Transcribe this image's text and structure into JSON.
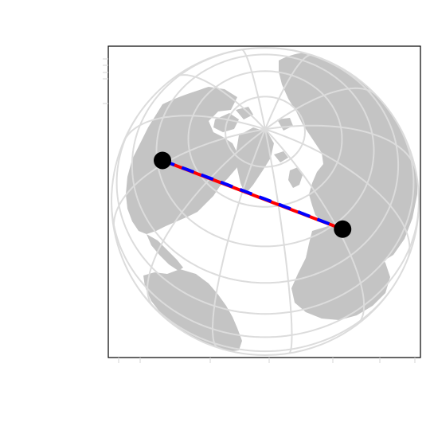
{
  "map": {
    "projection": "orthographic",
    "center_lat_deg": 62,
    "center_lon_deg": -40,
    "graticule_lat_step_deg": 15,
    "graticule_lon_step_deg": 30,
    "colors": {
      "background": "#ffffff",
      "globe": "#ffffff",
      "land": "#c4c4c4",
      "graticule": "#dcdcdc",
      "frame": "#000000",
      "direct_line": "#ff0000",
      "great_circle": "#0000ff",
      "markers": "#000000"
    },
    "points": [
      {
        "name": "point-a",
        "lat": 47.6,
        "lon": -122.3
      },
      {
        "name": "point-b",
        "lat": 41.4,
        "lon": 2.2
      }
    ],
    "routes": [
      {
        "name": "direct-line",
        "style": "solid",
        "from": "point-a",
        "to": "point-b"
      },
      {
        "name": "great-circle-route",
        "style": "dashed",
        "from": "point-a",
        "to": "point-b"
      }
    ]
  }
}
